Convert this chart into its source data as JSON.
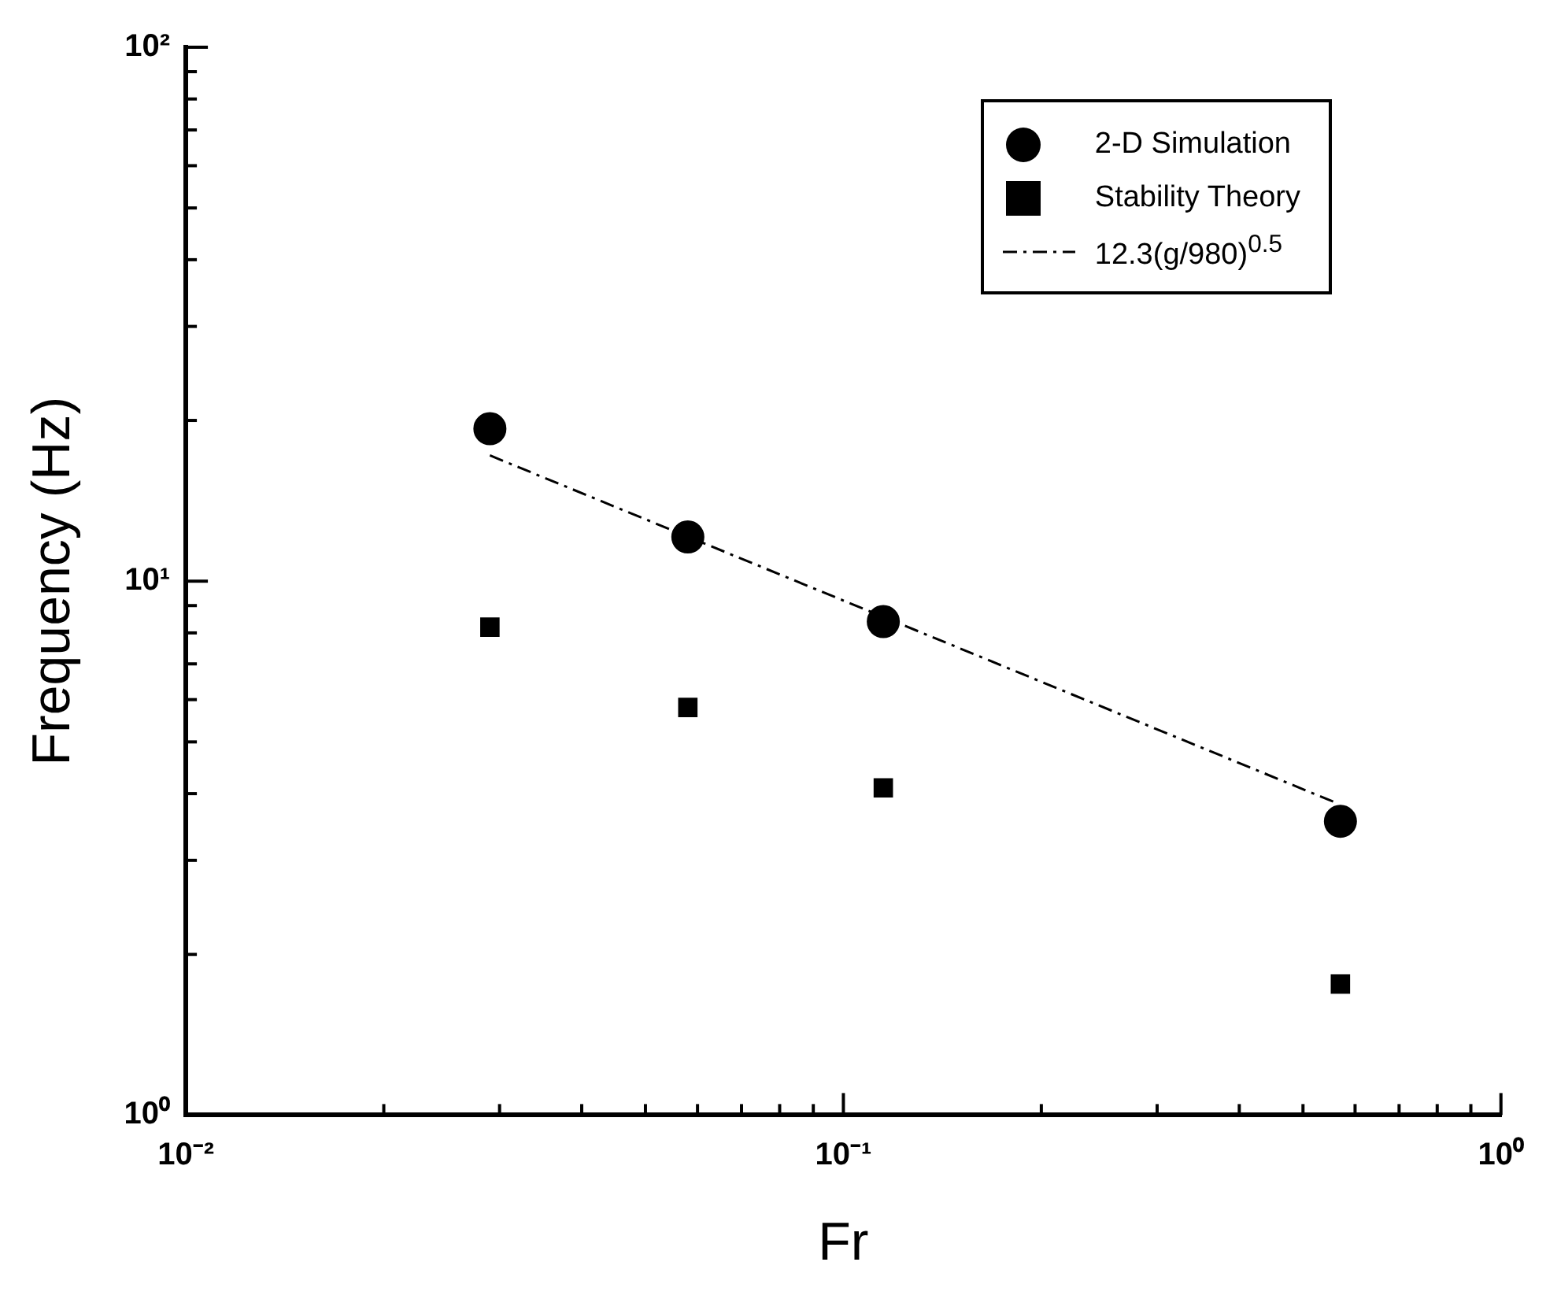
{
  "chart_data": {
    "type": "scatter",
    "xlabel": "Fr",
    "ylabel": "Frequency (Hz)",
    "log": "xy",
    "grid": false,
    "legend": "top right",
    "xlim": [
      0.01,
      1
    ],
    "ylim": [
      1,
      100
    ],
    "xticks": [
      {
        "value": 0.01,
        "label": "10⁻²"
      },
      {
        "value": 0.02,
        "label": null
      },
      {
        "value": 0.03,
        "label": null
      },
      {
        "value": 0.04,
        "label": null
      },
      {
        "value": 0.05,
        "label": null
      },
      {
        "value": 0.06,
        "label": null
      },
      {
        "value": 0.07,
        "label": null
      },
      {
        "value": 0.08,
        "label": null
      },
      {
        "value": 0.09,
        "label": null
      },
      {
        "value": 0.1,
        "label": "10⁻¹"
      },
      {
        "value": 0.2,
        "label": null
      },
      {
        "value": 0.3,
        "label": null
      },
      {
        "value": 0.4,
        "label": null
      },
      {
        "value": 0.5,
        "label": null
      },
      {
        "value": 0.6,
        "label": null
      },
      {
        "value": 0.7,
        "label": null
      },
      {
        "value": 0.8,
        "label": null
      },
      {
        "value": 0.9,
        "label": null
      },
      {
        "value": 1,
        "label": "10⁰"
      }
    ],
    "yticks": [
      {
        "value": 1,
        "label": "10⁰"
      },
      {
        "value": 2,
        "label": null
      },
      {
        "value": 3,
        "label": null
      },
      {
        "value": 4,
        "label": null
      },
      {
        "value": 5,
        "label": null
      },
      {
        "value": 6,
        "label": null
      },
      {
        "value": 7,
        "label": null
      },
      {
        "value": 8,
        "label": null
      },
      {
        "value": 9,
        "label": null
      },
      {
        "value": 10,
        "label": "10¹"
      },
      {
        "value": 20,
        "label": null
      },
      {
        "value": 30,
        "label": null
      },
      {
        "value": 40,
        "label": null
      },
      {
        "value": 50,
        "label": null
      },
      {
        "value": 60,
        "label": null
      },
      {
        "value": 70,
        "label": null
      },
      {
        "value": 80,
        "label": null
      },
      {
        "value": 90,
        "label": null
      },
      {
        "value": 100,
        "label": "10²"
      }
    ],
    "series": [
      {
        "name": "2-D Simulation",
        "type": "scatter",
        "marker": "circle",
        "color": "#000000",
        "x": [
          0.029,
          0.058,
          0.115,
          0.57
        ],
        "values": [
          19.3,
          12.1,
          8.4,
          3.55
        ]
      },
      {
        "name": "Stability Theory",
        "type": "scatter",
        "marker": "square",
        "color": "#000000",
        "x": [
          0.029,
          0.058,
          0.115,
          0.57
        ],
        "values": [
          8.2,
          5.8,
          4.1,
          1.76
        ]
      },
      {
        "name": "12.3(g/980)$^{0.5}$",
        "type": "line",
        "marker": "none",
        "line_style": "dashed",
        "color": "#000000",
        "x": [
          0.029,
          0.56
        ],
        "values": [
          17.2,
          3.85
        ]
      }
    ]
  }
}
